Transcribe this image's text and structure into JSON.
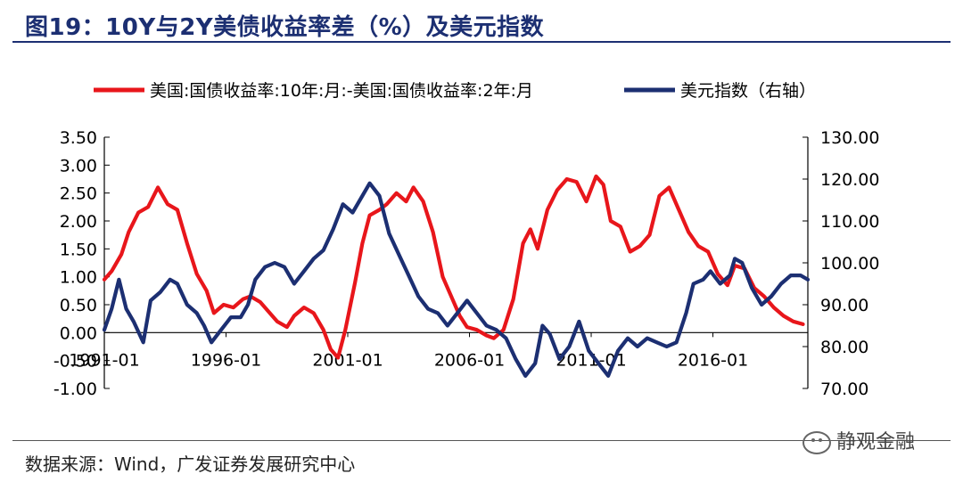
{
  "header": {
    "title": "图19：10Y与2Y美债收益率差（%）及美元指数"
  },
  "footer": {
    "source": "数据来源：Wind，广发证券发展研究中心",
    "watermark": "静观金融"
  },
  "chart_data": {
    "type": "line",
    "title": "图19：10Y与2Y美债收益率差（%）及美元指数",
    "legend_placement": "top-center",
    "x_tick_labels": [
      "1991-01",
      "1996-01",
      "2001-01",
      "2006-01",
      "2011-01",
      "2016-01"
    ],
    "x_range": [
      1991.0,
      2019.9
    ],
    "y_left": {
      "range": [
        -1.0,
        3.5
      ],
      "ticks": [
        "3.50",
        "3.00",
        "2.50",
        "2.00",
        "1.50",
        "1.00",
        "0.50",
        "0.00",
        "-0.50",
        "-1.00"
      ]
    },
    "y_right": {
      "range": [
        70.0,
        130.0
      ],
      "ticks": [
        "130.00",
        "120.00",
        "110.00",
        "100.00",
        "90.00",
        "80.00",
        "70.00"
      ]
    },
    "series": [
      {
        "name": "美国:国债收益率:10年:月:-美国:国债收益率:2年:月",
        "axis": "left",
        "color": "#e8161b",
        "points": [
          [
            1991.0,
            0.95
          ],
          [
            1991.3,
            1.1
          ],
          [
            1991.7,
            1.4
          ],
          [
            1992.0,
            1.8
          ],
          [
            1992.4,
            2.15
          ],
          [
            1992.8,
            2.25
          ],
          [
            1993.2,
            2.6
          ],
          [
            1993.6,
            2.3
          ],
          [
            1994.0,
            2.2
          ],
          [
            1994.4,
            1.6
          ],
          [
            1994.8,
            1.05
          ],
          [
            1995.2,
            0.75
          ],
          [
            1995.5,
            0.35
          ],
          [
            1995.9,
            0.5
          ],
          [
            1996.3,
            0.45
          ],
          [
            1996.7,
            0.6
          ],
          [
            1997.0,
            0.65
          ],
          [
            1997.4,
            0.55
          ],
          [
            1997.8,
            0.35
          ],
          [
            1998.1,
            0.2
          ],
          [
            1998.5,
            0.1
          ],
          [
            1998.8,
            0.3
          ],
          [
            1999.2,
            0.45
          ],
          [
            1999.6,
            0.35
          ],
          [
            2000.0,
            0.05
          ],
          [
            2000.3,
            -0.3
          ],
          [
            2000.6,
            -0.45
          ],
          [
            2000.9,
            0.05
          ],
          [
            2001.3,
            0.9
          ],
          [
            2001.6,
            1.6
          ],
          [
            2001.9,
            2.1
          ],
          [
            2002.3,
            2.2
          ],
          [
            2002.6,
            2.3
          ],
          [
            2003.0,
            2.5
          ],
          [
            2003.4,
            2.35
          ],
          [
            2003.7,
            2.6
          ],
          [
            2004.1,
            2.35
          ],
          [
            2004.5,
            1.8
          ],
          [
            2004.9,
            1.0
          ],
          [
            2005.3,
            0.6
          ],
          [
            2005.6,
            0.3
          ],
          [
            2005.9,
            0.1
          ],
          [
            2006.3,
            0.05
          ],
          [
            2006.7,
            -0.05
          ],
          [
            2007.0,
            -0.1
          ],
          [
            2007.4,
            0.05
          ],
          [
            2007.8,
            0.6
          ],
          [
            2008.2,
            1.6
          ],
          [
            2008.5,
            1.85
          ],
          [
            2008.8,
            1.5
          ],
          [
            2009.2,
            2.2
          ],
          [
            2009.6,
            2.55
          ],
          [
            2010.0,
            2.75
          ],
          [
            2010.4,
            2.7
          ],
          [
            2010.8,
            2.35
          ],
          [
            2011.2,
            2.8
          ],
          [
            2011.5,
            2.65
          ],
          [
            2011.8,
            2.0
          ],
          [
            2012.2,
            1.9
          ],
          [
            2012.6,
            1.45
          ],
          [
            2013.0,
            1.55
          ],
          [
            2013.4,
            1.75
          ],
          [
            2013.8,
            2.45
          ],
          [
            2014.2,
            2.6
          ],
          [
            2014.6,
            2.2
          ],
          [
            2015.0,
            1.8
          ],
          [
            2015.4,
            1.55
          ],
          [
            2015.8,
            1.45
          ],
          [
            2016.2,
            1.05
          ],
          [
            2016.6,
            0.85
          ],
          [
            2016.9,
            1.2
          ],
          [
            2017.3,
            1.15
          ],
          [
            2017.7,
            0.8
          ],
          [
            2018.1,
            0.65
          ],
          [
            2018.5,
            0.45
          ],
          [
            2018.9,
            0.3
          ],
          [
            2019.3,
            0.2
          ],
          [
            2019.7,
            0.15
          ]
        ]
      },
      {
        "name": "美元指数（右轴）",
        "axis": "right",
        "color": "#1c2f72",
        "points": [
          [
            1991.0,
            84
          ],
          [
            1991.3,
            89
          ],
          [
            1991.6,
            96
          ],
          [
            1991.9,
            89
          ],
          [
            1992.2,
            86
          ],
          [
            1992.6,
            81
          ],
          [
            1992.9,
            91
          ],
          [
            1993.3,
            93
          ],
          [
            1993.7,
            96
          ],
          [
            1994.0,
            95
          ],
          [
            1994.4,
            90
          ],
          [
            1994.8,
            88
          ],
          [
            1995.1,
            85
          ],
          [
            1995.4,
            81
          ],
          [
            1995.8,
            84
          ],
          [
            1996.2,
            87
          ],
          [
            1996.6,
            87
          ],
          [
            1996.9,
            90
          ],
          [
            1997.2,
            96
          ],
          [
            1997.6,
            99
          ],
          [
            1998.0,
            100
          ],
          [
            1998.4,
            99
          ],
          [
            1998.8,
            95
          ],
          [
            1999.2,
            98
          ],
          [
            1999.6,
            101
          ],
          [
            2000.0,
            103
          ],
          [
            2000.4,
            108
          ],
          [
            2000.8,
            114
          ],
          [
            2001.2,
            112
          ],
          [
            2001.6,
            116
          ],
          [
            2001.9,
            119
          ],
          [
            2002.3,
            116
          ],
          [
            2002.7,
            107
          ],
          [
            2003.1,
            102
          ],
          [
            2003.5,
            97
          ],
          [
            2003.9,
            92
          ],
          [
            2004.3,
            89
          ],
          [
            2004.7,
            88
          ],
          [
            2005.1,
            85
          ],
          [
            2005.5,
            88
          ],
          [
            2005.9,
            91
          ],
          [
            2006.3,
            88
          ],
          [
            2006.7,
            85
          ],
          [
            2007.1,
            84
          ],
          [
            2007.5,
            82
          ],
          [
            2007.9,
            77
          ],
          [
            2008.3,
            73
          ],
          [
            2008.7,
            76
          ],
          [
            2009.0,
            85
          ],
          [
            2009.3,
            83
          ],
          [
            2009.7,
            77
          ],
          [
            2010.1,
            80
          ],
          [
            2010.5,
            86
          ],
          [
            2010.9,
            79
          ],
          [
            2011.3,
            76
          ],
          [
            2011.7,
            73
          ],
          [
            2012.1,
            79
          ],
          [
            2012.5,
            82
          ],
          [
            2012.9,
            80
          ],
          [
            2013.3,
            82
          ],
          [
            2013.7,
            81
          ],
          [
            2014.1,
            80
          ],
          [
            2014.5,
            81
          ],
          [
            2014.9,
            88
          ],
          [
            2015.2,
            95
          ],
          [
            2015.6,
            96
          ],
          [
            2015.9,
            98
          ],
          [
            2016.3,
            95
          ],
          [
            2016.7,
            97
          ],
          [
            2016.9,
            101
          ],
          [
            2017.2,
            100
          ],
          [
            2017.6,
            94
          ],
          [
            2018.0,
            90
          ],
          [
            2018.4,
            92
          ],
          [
            2018.8,
            95
          ],
          [
            2019.2,
            97
          ],
          [
            2019.6,
            97
          ],
          [
            2019.9,
            96
          ]
        ]
      }
    ]
  }
}
